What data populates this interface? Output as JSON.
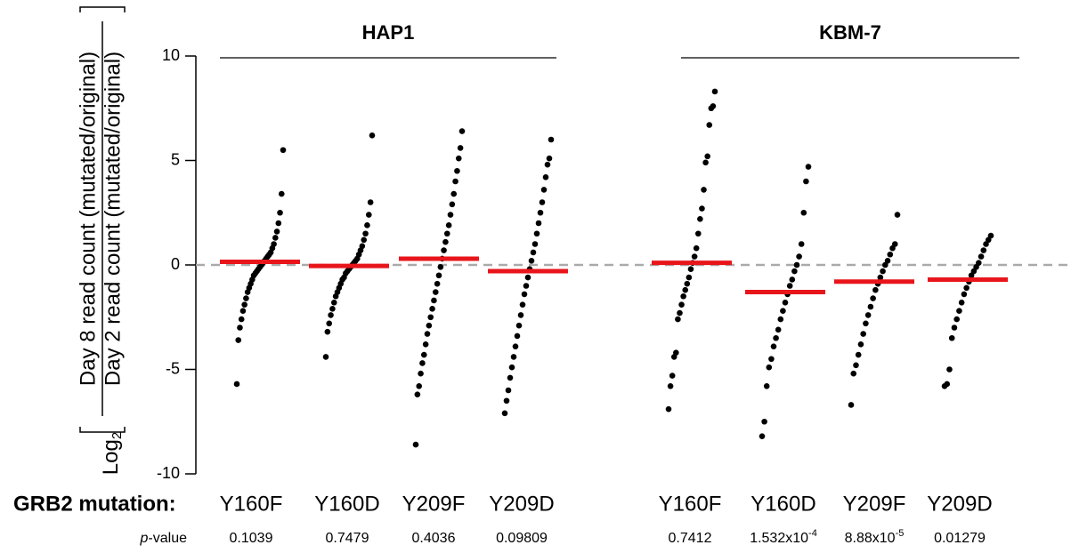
{
  "chart_data": {
    "type": "strip",
    "y_label": {
      "prefix": "Log",
      "subscript": "2",
      "numerator": "Day 8 read count (mutated/original)",
      "denominator": "Day 2 read count (mutated/original)"
    },
    "ylim": [
      -10,
      10
    ],
    "yticks": [
      10,
      5,
      0,
      -5,
      -10
    ],
    "zero_line": true,
    "point_color": "#000000",
    "median_color": "#e8151b",
    "x_label": "GRB2 mutation:",
    "p_label": {
      "italic": "p",
      "rest": "-value"
    },
    "groups": [
      {
        "name": "HAP1",
        "series": [
          {
            "name": "Y160F",
            "median": 0.15,
            "p_value": 0.1039,
            "values": [
              -5.7,
              -3.6,
              -3.0,
              -2.6,
              -2.2,
              -1.9,
              -1.6,
              -1.3,
              -1.1,
              -0.9,
              -0.7,
              -0.5,
              -0.4,
              -0.3,
              -0.2,
              -0.1,
              0,
              0.1,
              0.2,
              0.3,
              0.4,
              0.5,
              0.6,
              0.8,
              1.0,
              1.3,
              1.6,
              2.0,
              2.5,
              3.4,
              5.5
            ]
          },
          {
            "name": "Y160D",
            "median": -0.05,
            "p_value": 0.7479,
            "values": [
              -4.4,
              -3.2,
              -2.8,
              -2.4,
              -2.1,
              -1.8,
              -1.5,
              -1.3,
              -1.1,
              -0.9,
              -0.7,
              -0.6,
              -0.4,
              -0.3,
              -0.2,
              -0.1,
              0,
              0.1,
              0.2,
              0.3,
              0.5,
              0.7,
              0.9,
              1.2,
              1.5,
              1.9,
              2.4,
              3.0,
              6.2
            ]
          },
          {
            "name": "Y209F",
            "median": 0.3,
            "p_value": 0.4036,
            "values": [
              -8.6,
              -6.2,
              -5.8,
              -5.2,
              -4.7,
              -4.3,
              -3.8,
              -3.3,
              -2.9,
              -2.5,
              -2.1,
              -1.7,
              -1.3,
              -0.9,
              -0.5,
              -0.1,
              0.3,
              0.7,
              1.1,
              1.5,
              1.9,
              2.4,
              2.9,
              3.4,
              4.0,
              4.5,
              5.1,
              5.6,
              6.4
            ]
          },
          {
            "name": "Y209D",
            "median": -0.3,
            "p_value": 0.09809,
            "values": [
              -7.1,
              -6.5,
              -6.0,
              -5.4,
              -4.9,
              -4.4,
              -3.9,
              -3.4,
              -2.9,
              -2.4,
              -1.9,
              -1.4,
              -1.0,
              -0.6,
              -0.2,
              0.2,
              0.6,
              1.0,
              1.5,
              2.0,
              2.5,
              3.0,
              3.6,
              4.2,
              4.8,
              5.1,
              6.0
            ]
          }
        ]
      },
      {
        "name": "KBM-7",
        "series": [
          {
            "name": "Y160F",
            "median": 0.1,
            "p_value": 0.7412,
            "values": [
              -6.9,
              -5.8,
              -5.3,
              -4.4,
              -4.2,
              -2.6,
              -2.3,
              -1.9,
              -1.5,
              -1.2,
              -0.9,
              -0.6,
              -0.2,
              0.1,
              0.4,
              0.8,
              1.5,
              2.2,
              2.7,
              3.6,
              4.9,
              5.2,
              6.7,
              7.5,
              7.6,
              8.3
            ]
          },
          {
            "name": "Y160D",
            "median": -1.3,
            "p_value": {
              "value": 0.0001532,
              "mantissa": "1.532x10",
              "exponent": "-4"
            },
            "values": [
              -8.2,
              -7.5,
              -5.8,
              -4.9,
              -4.5,
              -3.9,
              -3.5,
              -3.1,
              -2.6,
              -2.2,
              -1.8,
              -1.4,
              -1.0,
              -0.7,
              -0.3,
              0,
              0.4,
              1.0,
              2.5,
              4.0,
              4.7
            ]
          },
          {
            "name": "Y209F",
            "median": -0.8,
            "p_value": {
              "value": 8.88e-05,
              "mantissa": "8.88x10",
              "exponent": "-5"
            },
            "values": [
              -6.7,
              -5.2,
              -4.8,
              -4.3,
              -3.8,
              -3.3,
              -2.8,
              -2.4,
              -2.0,
              -1.6,
              -1.2,
              -0.9,
              -0.6,
              -0.3,
              0,
              0.2,
              0.5,
              0.8,
              1.0,
              2.4
            ]
          },
          {
            "name": "Y209D",
            "median": -0.7,
            "p_value": 0.01279,
            "values": [
              -5.8,
              -5.7,
              -5.0,
              -3.5,
              -3.0,
              -2.6,
              -2.2,
              -1.8,
              -1.4,
              -1.1,
              -0.8,
              -0.5,
              -0.3,
              -0.1,
              0.1,
              0.4,
              0.7,
              1.0,
              1.2,
              1.4
            ]
          }
        ]
      }
    ]
  }
}
